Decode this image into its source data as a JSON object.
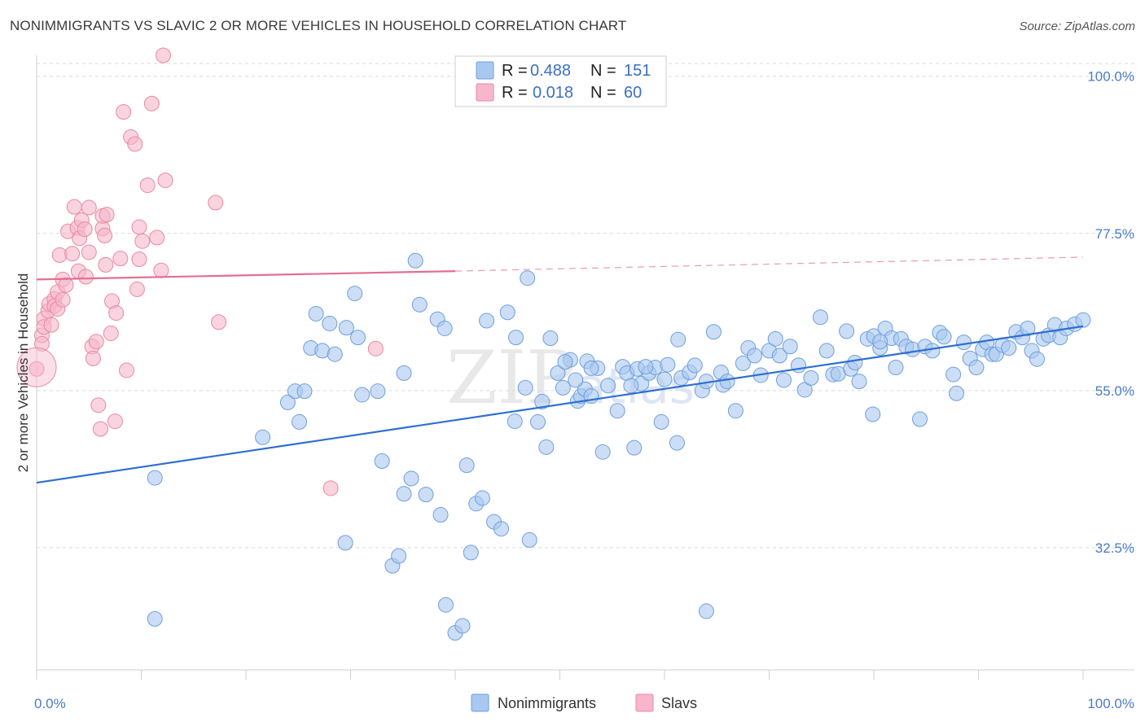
{
  "title": "NONIMMIGRANTS VS SLAVIC 2 OR MORE VEHICLES IN HOUSEHOLD CORRELATION CHART",
  "source": "Source: ZipAtlas.com",
  "watermark": {
    "zip": "ZIP",
    "atlas": "atlas"
  },
  "legend_box": {
    "rows": [
      {
        "r_label": "R =",
        "r_value": "0.488",
        "n_label": "N =",
        "n_value": "151",
        "color": "#a9c8f0"
      },
      {
        "r_label": "R =",
        "r_value": "0.018",
        "n_label": "N =",
        "n_value": "60",
        "color": "#f7b6cb"
      }
    ]
  },
  "bottom_legend": [
    {
      "label": "Nonimmigrants",
      "color": "#a9c8f0"
    },
    {
      "label": "Slavs",
      "color": "#f7b6cb"
    }
  ],
  "chart_data": {
    "type": "scatter",
    "ylabel": "2 or more Vehicles in Household",
    "xlabel": "",
    "xlim": [
      0,
      100
    ],
    "ylim": [
      15,
      103
    ],
    "x_tick_labels": [
      {
        "value": 0,
        "label": "0.0%"
      },
      {
        "value": 100,
        "label": "100.0%"
      }
    ],
    "y_tick_labels": [
      {
        "value": 100,
        "label": "100.0%"
      },
      {
        "value": 77.5,
        "label": "77.5%"
      },
      {
        "value": 55,
        "label": "55.0%"
      },
      {
        "value": 32.5,
        "label": "32.5%"
      }
    ],
    "x_minor_ticks": [
      0,
      10,
      20,
      30,
      40,
      50,
      60,
      70,
      80,
      90,
      100
    ],
    "series": [
      {
        "name": "Nonimmigrants",
        "color": "#a9c8f0",
        "stroke": "#6f9fdc",
        "trend": {
          "x0": 0,
          "y0": 41.8,
          "x1": 100,
          "y1": 64.2,
          "color": "#2e6fd0"
        },
        "points": [
          [
            11.3,
            42.5
          ],
          [
            11.3,
            22.3
          ],
          [
            21.6,
            48.3
          ],
          [
            24.0,
            53.3
          ],
          [
            24.7,
            54.9
          ],
          [
            25.1,
            50.5
          ],
          [
            25.6,
            54.9
          ],
          [
            26.2,
            61.1
          ],
          [
            26.7,
            66.0
          ],
          [
            27.3,
            60.7
          ],
          [
            28.0,
            64.6
          ],
          [
            28.5,
            60.2
          ],
          [
            29.5,
            33.2
          ],
          [
            29.6,
            64.0
          ],
          [
            30.4,
            68.9
          ],
          [
            30.7,
            62.6
          ],
          [
            31.1,
            54.4
          ],
          [
            32.6,
            54.9
          ],
          [
            33.0,
            44.9
          ],
          [
            34.0,
            29.9
          ],
          [
            34.6,
            31.3
          ],
          [
            35.1,
            40.2
          ],
          [
            35.1,
            57.5
          ],
          [
            35.8,
            42.4
          ],
          [
            36.2,
            73.6
          ],
          [
            36.6,
            67.3
          ],
          [
            37.2,
            40.1
          ],
          [
            38.3,
            65.2
          ],
          [
            38.6,
            37.2
          ],
          [
            39.0,
            63.9
          ],
          [
            39.1,
            24.3
          ],
          [
            40.0,
            20.3
          ],
          [
            40.7,
            21.3
          ],
          [
            41.1,
            44.3
          ],
          [
            41.5,
            31.8
          ],
          [
            42.0,
            38.8
          ],
          [
            42.6,
            39.6
          ],
          [
            43.0,
            65.0
          ],
          [
            43.7,
            36.2
          ],
          [
            44.4,
            35.2
          ],
          [
            45.0,
            66.2
          ],
          [
            45.7,
            50.6
          ],
          [
            45.8,
            62.6
          ],
          [
            46.7,
            55.4
          ],
          [
            46.9,
            71.1
          ],
          [
            47.1,
            33.6
          ],
          [
            47.9,
            50.5
          ],
          [
            48.3,
            53.4
          ],
          [
            48.7,
            46.9
          ],
          [
            49.1,
            62.5
          ],
          [
            49.8,
            57.5
          ],
          [
            50.3,
            55.4
          ],
          [
            51.0,
            59.4
          ],
          [
            51.7,
            53.5
          ],
          [
            52.0,
            54.2
          ],
          [
            52.4,
            55.2
          ],
          [
            52.6,
            59.2
          ],
          [
            53.0,
            54.2
          ],
          [
            53.6,
            58.2
          ],
          [
            54.1,
            46.2
          ],
          [
            54.6,
            55.7
          ],
          [
            55.5,
            52.1
          ],
          [
            56.0,
            58.4
          ],
          [
            56.4,
            57.5
          ],
          [
            57.1,
            46.8
          ],
          [
            57.4,
            58.1
          ],
          [
            57.8,
            56.0
          ],
          [
            58.5,
            57.5
          ],
          [
            59.1,
            58.3
          ],
          [
            59.7,
            50.5
          ],
          [
            60.3,
            58.7
          ],
          [
            61.2,
            47.5
          ],
          [
            61.6,
            56.8
          ],
          [
            62.4,
            57.6
          ],
          [
            62.9,
            58.6
          ],
          [
            63.6,
            55.0
          ],
          [
            64.0,
            56.3
          ],
          [
            64.7,
            63.4
          ],
          [
            65.4,
            57.6
          ],
          [
            65.6,
            55.8
          ],
          [
            66.0,
            56.3
          ],
          [
            66.8,
            52.1
          ],
          [
            67.5,
            58.9
          ],
          [
            68.0,
            61.1
          ],
          [
            68.6,
            60.0
          ],
          [
            69.2,
            57.2
          ],
          [
            70.0,
            60.7
          ],
          [
            70.6,
            62.4
          ],
          [
            71.0,
            60.0
          ],
          [
            71.4,
            56.5
          ],
          [
            72.0,
            61.3
          ],
          [
            72.8,
            58.6
          ],
          [
            73.4,
            55.1
          ],
          [
            74.0,
            56.8
          ],
          [
            74.9,
            65.5
          ],
          [
            75.5,
            60.7
          ],
          [
            76.1,
            57.3
          ],
          [
            76.6,
            57.4
          ],
          [
            77.4,
            63.5
          ],
          [
            77.8,
            58.1
          ],
          [
            78.2,
            59.0
          ],
          [
            78.6,
            56.3
          ],
          [
            79.4,
            62.4
          ],
          [
            80.0,
            62.8
          ],
          [
            80.6,
            61.1
          ],
          [
            81.1,
            63.9
          ],
          [
            81.7,
            62.5
          ],
          [
            82.1,
            58.3
          ],
          [
            82.6,
            62.4
          ],
          [
            83.1,
            61.3
          ],
          [
            83.7,
            60.9
          ],
          [
            84.4,
            50.9
          ],
          [
            84.9,
            61.3
          ],
          [
            85.6,
            60.7
          ],
          [
            86.3,
            63.3
          ],
          [
            86.7,
            62.7
          ],
          [
            87.6,
            57.3
          ],
          [
            87.9,
            54.6
          ],
          [
            88.6,
            61.9
          ],
          [
            89.2,
            59.6
          ],
          [
            89.8,
            58.3
          ],
          [
            90.4,
            60.9
          ],
          [
            90.8,
            61.9
          ],
          [
            91.3,
            60.2
          ],
          [
            91.7,
            60.2
          ],
          [
            92.3,
            61.5
          ],
          [
            92.9,
            61.1
          ],
          [
            93.6,
            63.4
          ],
          [
            94.2,
            62.6
          ],
          [
            94.7,
            63.9
          ],
          [
            95.1,
            60.7
          ],
          [
            95.6,
            59.5
          ],
          [
            96.2,
            62.4
          ],
          [
            96.7,
            62.9
          ],
          [
            97.3,
            64.4
          ],
          [
            97.8,
            62.6
          ],
          [
            98.4,
            63.9
          ],
          [
            99.2,
            64.5
          ],
          [
            100.0,
            65.1
          ],
          [
            80.6,
            62.0
          ],
          [
            79.9,
            51.6
          ],
          [
            64.0,
            23.4
          ],
          [
            61.3,
            62.3
          ],
          [
            60.0,
            56.6
          ],
          [
            58.2,
            58.4
          ],
          [
            56.8,
            55.7
          ],
          [
            53.0,
            58.2
          ],
          [
            51.5,
            56.5
          ],
          [
            50.5,
            59.1
          ]
        ]
      },
      {
        "name": "Slavs",
        "color": "#f7b6cb",
        "stroke": "#e8899f",
        "trend": {
          "x0": 0,
          "y0": 70.9,
          "x1": 40,
          "y1": 72.1,
          "x2": 100,
          "y2": 74.1,
          "color": "#e26f92"
        },
        "points": [
          [
            0.0,
            58.1
          ],
          [
            0.5,
            62.9
          ],
          [
            0.5,
            61.7
          ],
          [
            0.7,
            65.3
          ],
          [
            0.7,
            64.1
          ],
          [
            1.1,
            66.4
          ],
          [
            1.2,
            67.4
          ],
          [
            1.4,
            64.4
          ],
          [
            1.7,
            68.1
          ],
          [
            1.7,
            67.1
          ],
          [
            2.0,
            69.1
          ],
          [
            2.0,
            66.7
          ],
          [
            2.2,
            74.4
          ],
          [
            2.5,
            68.0
          ],
          [
            2.5,
            70.9
          ],
          [
            2.8,
            70.1
          ],
          [
            3.0,
            77.8
          ],
          [
            3.4,
            74.6
          ],
          [
            3.6,
            81.3
          ],
          [
            3.9,
            78.3
          ],
          [
            4.0,
            72.1
          ],
          [
            4.1,
            76.8
          ],
          [
            4.3,
            79.4
          ],
          [
            4.6,
            78.1
          ],
          [
            4.7,
            71.3
          ],
          [
            5.0,
            81.2
          ],
          [
            5.0,
            74.8
          ],
          [
            5.3,
            61.3
          ],
          [
            5.4,
            59.6
          ],
          [
            5.7,
            62.0
          ],
          [
            5.9,
            52.9
          ],
          [
            6.1,
            49.5
          ],
          [
            6.3,
            78.2
          ],
          [
            6.3,
            80.0
          ],
          [
            6.5,
            77.2
          ],
          [
            6.6,
            73.0
          ],
          [
            6.7,
            80.2
          ],
          [
            7.1,
            63.2
          ],
          [
            7.2,
            67.8
          ],
          [
            7.5,
            50.6
          ],
          [
            7.6,
            66.1
          ],
          [
            8.0,
            73.9
          ],
          [
            8.3,
            94.9
          ],
          [
            8.6,
            57.9
          ],
          [
            9.0,
            91.3
          ],
          [
            9.4,
            90.3
          ],
          [
            9.6,
            69.5
          ],
          [
            9.8,
            73.8
          ],
          [
            9.8,
            78.4
          ],
          [
            10.1,
            76.4
          ],
          [
            10.6,
            84.4
          ],
          [
            11.0,
            96.1
          ],
          [
            11.5,
            76.9
          ],
          [
            11.9,
            72.2
          ],
          [
            12.1,
            103.0
          ],
          [
            12.3,
            85.1
          ],
          [
            17.1,
            81.9
          ],
          [
            17.4,
            64.8
          ],
          [
            28.1,
            41.0
          ],
          [
            32.4,
            61.0
          ]
        ]
      }
    ]
  }
}
